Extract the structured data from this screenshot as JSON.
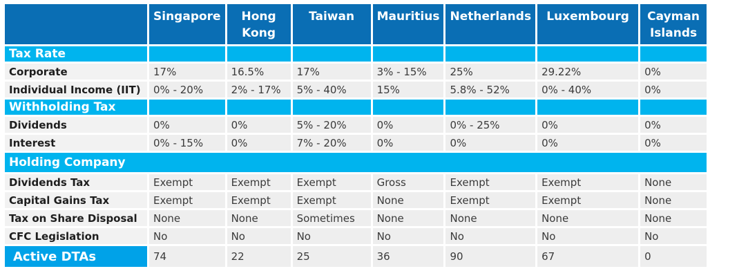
{
  "countries": [
    "Singapore",
    "Hong Kong",
    "Taiwan",
    "Mauritius",
    "Netherlands",
    "Luxembourg",
    "Cayman Islands"
  ],
  "sections": {
    "tax_rate": "Tax Rate",
    "withholding_tax": "Withholding Tax",
    "holding_company": "Holding Company",
    "active_dtas": "Active DTAs"
  },
  "rows": {
    "corporate": {
      "label": "Corporate",
      "values": [
        "17%",
        "16.5%",
        "17%",
        "3% - 15%",
        "25%",
        "29.22%",
        "0%"
      ]
    },
    "individual": {
      "label": "Individual Income (IIT)",
      "values": [
        "0% - 20%",
        "2% - 17%",
        "5% - 40%",
        "15%",
        "5.8% - 52%",
        "0% - 40%",
        "0%"
      ]
    },
    "dividends": {
      "label": "Dividends",
      "values": [
        "0%",
        "0%",
        "5% - 20%",
        "0%",
        "0% - 25%",
        "0%",
        "0%"
      ]
    },
    "interest": {
      "label": "Interest",
      "values": [
        "0% - 15%",
        "0%",
        "7% - 20%",
        "0%",
        "0%",
        "0%",
        "0%"
      ]
    },
    "dividends_tax": {
      "label": "Dividends Tax",
      "values": [
        "Exempt",
        "Exempt",
        "Exempt",
        "Gross",
        "Exempt",
        "Exempt",
        "None"
      ]
    },
    "capital_gains": {
      "label": "Capital Gains Tax",
      "values": [
        "Exempt",
        "Exempt",
        "Exempt",
        "None",
        "Exempt",
        "Exempt",
        "None"
      ]
    },
    "share_disposal": {
      "label": "Tax on Share Disposal",
      "values": [
        "None",
        "None",
        "Sometimes",
        "None",
        "None",
        "None",
        "None"
      ]
    },
    "cfc": {
      "label": "CFC Legislation",
      "values": [
        "No",
        "No",
        "No",
        "No",
        "No",
        "No",
        "No"
      ]
    },
    "dtas": {
      "values": [
        "74",
        "22",
        "25",
        "36",
        "90",
        "67",
        "0"
      ]
    }
  },
  "colors": {
    "header": "#0a6eb4",
    "section": "#00b4ee",
    "dta_label": "#00a2e8",
    "cell": "#eeeeee"
  }
}
